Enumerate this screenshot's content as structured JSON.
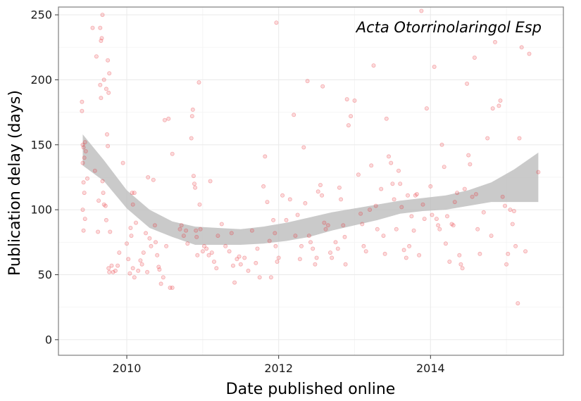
{
  "chart_data": {
    "type": "scatter",
    "title": "",
    "annotation": "Acta Otorrinolaringol Esp",
    "xlabel": "Date published online",
    "ylabel": "Publication delay (days)",
    "xlim": [
      2009.1,
      2015.75
    ],
    "ylim": [
      -12,
      256
    ],
    "x_ticks": [
      2010,
      2012,
      2014
    ],
    "x_tick_labels": [
      "2010",
      "2012",
      "2014"
    ],
    "y_ticks": [
      0,
      50,
      100,
      150,
      200,
      250
    ],
    "y_tick_labels": [
      "0",
      "50",
      "100",
      "150",
      "200",
      "250"
    ],
    "grid": true,
    "point_color": "#e8323a",
    "band_color": "#bdbdbd",
    "points": [
      [
        2009.41,
        183
      ],
      [
        2009.41,
        176
      ],
      [
        2009.42,
        150
      ],
      [
        2009.43,
        148
      ],
      [
        2009.44,
        140
      ],
      [
        2009.42,
        136
      ],
      [
        2009.45,
        152
      ],
      [
        2009.46,
        145
      ],
      [
        2009.43,
        121
      ],
      [
        2009.44,
        113
      ],
      [
        2009.42,
        100
      ],
      [
        2009.45,
        93
      ],
      [
        2009.43,
        84
      ],
      [
        2009.48,
        124
      ],
      [
        2009.55,
        240
      ],
      [
        2009.58,
        130
      ],
      [
        2009.6,
        218
      ],
      [
        2009.62,
        83
      ],
      [
        2009.63,
        107
      ],
      [
        2009.65,
        240
      ],
      [
        2009.66,
        230
      ],
      [
        2009.67,
        232
      ],
      [
        2009.65,
        196
      ],
      [
        2009.66,
        186
      ],
      [
        2009.68,
        122
      ],
      [
        2009.69,
        113
      ],
      [
        2009.7,
        104
      ],
      [
        2009.68,
        250
      ],
      [
        2009.7,
        200
      ],
      [
        2009.72,
        103
      ],
      [
        2009.73,
        193
      ],
      [
        2009.74,
        158
      ],
      [
        2009.75,
        149
      ],
      [
        2009.73,
        92
      ],
      [
        2009.76,
        55
      ],
      [
        2009.77,
        52
      ],
      [
        2009.78,
        83
      ],
      [
        2009.75,
        215
      ],
      [
        2009.76,
        190
      ],
      [
        2009.77,
        205
      ],
      [
        2009.8,
        57
      ],
      [
        2009.82,
        52
      ],
      [
        2009.85,
        53
      ],
      [
        2009.88,
        57
      ],
      [
        2009.9,
        67
      ],
      [
        2009.95,
        136
      ],
      [
        2010.0,
        74
      ],
      [
        2010.02,
        62
      ],
      [
        2010.04,
        51
      ],
      [
        2010.06,
        80
      ],
      [
        2010.07,
        113
      ],
      [
        2010.08,
        104
      ],
      [
        2010.1,
        113
      ],
      [
        2010.12,
        90
      ],
      [
        2010.05,
        86
      ],
      [
        2010.08,
        55
      ],
      [
        2010.1,
        48
      ],
      [
        2010.15,
        53
      ],
      [
        2010.18,
        61
      ],
      [
        2010.2,
        58
      ],
      [
        2010.22,
        67
      ],
      [
        2010.25,
        82
      ],
      [
        2010.27,
        52
      ],
      [
        2010.28,
        125
      ],
      [
        2010.3,
        78
      ],
      [
        2010.32,
        72
      ],
      [
        2010.35,
        123
      ],
      [
        2010.37,
        88
      ],
      [
        2010.38,
        75
      ],
      [
        2010.4,
        65
      ],
      [
        2010.42,
        56
      ],
      [
        2010.43,
        54
      ],
      [
        2010.45,
        43
      ],
      [
        2010.48,
        48
      ],
      [
        2010.5,
        169
      ],
      [
        2010.52,
        72
      ],
      [
        2010.55,
        170
      ],
      [
        2010.57,
        40
      ],
      [
        2010.6,
        40
      ],
      [
        2010.6,
        143
      ],
      [
        2010.7,
        85
      ],
      [
        2010.72,
        88
      ],
      [
        2010.75,
        80
      ],
      [
        2010.78,
        84
      ],
      [
        2010.8,
        74
      ],
      [
        2010.85,
        155
      ],
      [
        2010.86,
        172
      ],
      [
        2010.87,
        177
      ],
      [
        2010.88,
        126
      ],
      [
        2010.89,
        120
      ],
      [
        2010.9,
        117
      ],
      [
        2010.91,
        84
      ],
      [
        2010.92,
        79
      ],
      [
        2010.93,
        65
      ],
      [
        2010.95,
        198
      ],
      [
        2010.96,
        104
      ],
      [
        2010.97,
        85
      ],
      [
        2011.0,
        68
      ],
      [
        2011.02,
        72
      ],
      [
        2011.05,
        70
      ],
      [
        2011.08,
        65
      ],
      [
        2011.1,
        122
      ],
      [
        2011.12,
        67
      ],
      [
        2011.15,
        60
      ],
      [
        2011.18,
        55
      ],
      [
        2011.2,
        80
      ],
      [
        2011.25,
        89
      ],
      [
        2011.3,
        72
      ],
      [
        2011.35,
        68
      ],
      [
        2011.38,
        82
      ],
      [
        2011.4,
        57
      ],
      [
        2011.42,
        44
      ],
      [
        2011.45,
        62
      ],
      [
        2011.48,
        64
      ],
      [
        2011.5,
        58
      ],
      [
        2011.55,
        63
      ],
      [
        2011.6,
        53
      ],
      [
        2011.65,
        84
      ],
      [
        2011.7,
        59
      ],
      [
        2011.72,
        70
      ],
      [
        2011.75,
        48
      ],
      [
        2011.8,
        118
      ],
      [
        2011.82,
        141
      ],
      [
        2011.85,
        106
      ],
      [
        2011.88,
        76
      ],
      [
        2011.9,
        48
      ],
      [
        2011.93,
        92
      ],
      [
        2011.95,
        82
      ],
      [
        2011.96,
        72
      ],
      [
        2011.97,
        244
      ],
      [
        2011.98,
        60
      ],
      [
        2012.0,
        63
      ],
      [
        2012.05,
        111
      ],
      [
        2012.1,
        92
      ],
      [
        2012.15,
        108
      ],
      [
        2012.2,
        173
      ],
      [
        2012.22,
        80
      ],
      [
        2012.25,
        96
      ],
      [
        2012.28,
        62
      ],
      [
        2012.3,
        72
      ],
      [
        2012.33,
        148
      ],
      [
        2012.35,
        105
      ],
      [
        2012.38,
        199
      ],
      [
        2012.4,
        80
      ],
      [
        2012.42,
        75
      ],
      [
        2012.45,
        70
      ],
      [
        2012.48,
        58
      ],
      [
        2012.5,
        63
      ],
      [
        2012.52,
        114
      ],
      [
        2012.55,
        119
      ],
      [
        2012.57,
        111
      ],
      [
        2012.58,
        195
      ],
      [
        2012.6,
        90
      ],
      [
        2012.62,
        85
      ],
      [
        2012.65,
        88
      ],
      [
        2012.68,
        67
      ],
      [
        2012.7,
        63
      ],
      [
        2012.75,
        75
      ],
      [
        2012.78,
        70
      ],
      [
        2012.8,
        117
      ],
      [
        2012.82,
        108
      ],
      [
        2012.85,
        88
      ],
      [
        2012.87,
        79
      ],
      [
        2012.88,
        58
      ],
      [
        2012.9,
        185
      ],
      [
        2012.92,
        165
      ],
      [
        2012.95,
        172
      ],
      [
        2013.0,
        184
      ],
      [
        2013.05,
        127
      ],
      [
        2013.08,
        97
      ],
      [
        2013.1,
        89
      ],
      [
        2013.12,
        72
      ],
      [
        2013.15,
        68
      ],
      [
        2013.2,
        100
      ],
      [
        2013.22,
        134
      ],
      [
        2013.25,
        211
      ],
      [
        2013.28,
        103
      ],
      [
        2013.3,
        85
      ],
      [
        2013.35,
        116
      ],
      [
        2013.38,
        80
      ],
      [
        2013.4,
        66
      ],
      [
        2013.42,
        170
      ],
      [
        2013.45,
        141
      ],
      [
        2013.48,
        136
      ],
      [
        2013.5,
        120
      ],
      [
        2013.52,
        108
      ],
      [
        2013.55,
        85
      ],
      [
        2013.58,
        130
      ],
      [
        2013.6,
        120
      ],
      [
        2013.62,
        102
      ],
      [
        2013.65,
        69
      ],
      [
        2013.68,
        63
      ],
      [
        2013.7,
        111
      ],
      [
        2013.72,
        72
      ],
      [
        2013.75,
        95
      ],
      [
        2013.78,
        84
      ],
      [
        2013.8,
        111
      ],
      [
        2013.82,
        112
      ],
      [
        2013.85,
        65
      ],
      [
        2013.88,
        253
      ],
      [
        2013.9,
        104
      ],
      [
        2013.92,
        93
      ],
      [
        2013.95,
        178
      ],
      [
        2014.0,
        118
      ],
      [
        2014.02,
        96
      ],
      [
        2014.05,
        210
      ],
      [
        2014.08,
        93
      ],
      [
        2014.1,
        88
      ],
      [
        2014.12,
        85
      ],
      [
        2014.15,
        150
      ],
      [
        2014.18,
        133
      ],
      [
        2014.2,
        74
      ],
      [
        2014.22,
        95
      ],
      [
        2014.25,
        60
      ],
      [
        2014.28,
        89
      ],
      [
        2014.3,
        88
      ],
      [
        2014.32,
        106
      ],
      [
        2014.35,
        113
      ],
      [
        2014.38,
        65
      ],
      [
        2014.4,
        58
      ],
      [
        2014.42,
        55
      ],
      [
        2014.45,
        116
      ],
      [
        2014.48,
        197
      ],
      [
        2014.5,
        142
      ],
      [
        2014.52,
        135
      ],
      [
        2014.55,
        110
      ],
      [
        2014.58,
        217
      ],
      [
        2014.6,
        112
      ],
      [
        2014.62,
        85
      ],
      [
        2014.65,
        66
      ],
      [
        2014.7,
        98
      ],
      [
        2014.75,
        155
      ],
      [
        2014.8,
        80
      ],
      [
        2014.82,
        178
      ],
      [
        2014.85,
        229
      ],
      [
        2014.9,
        180
      ],
      [
        2014.92,
        184
      ],
      [
        2014.95,
        110
      ],
      [
        2014.98,
        103
      ],
      [
        2015.0,
        58
      ],
      [
        2015.02,
        66
      ],
      [
        2015.05,
        100
      ],
      [
        2015.08,
        89
      ],
      [
        2015.1,
        99
      ],
      [
        2015.12,
        72
      ],
      [
        2015.15,
        28
      ],
      [
        2015.17,
        155
      ],
      [
        2015.2,
        225
      ],
      [
        2015.25,
        68
      ],
      [
        2015.3,
        220
      ],
      [
        2015.42,
        129
      ]
    ],
    "fit": {
      "x": [
        2009.42,
        2009.7,
        2010.0,
        2010.3,
        2010.6,
        2010.9,
        2011.2,
        2011.5,
        2011.8,
        2012.1,
        2012.4,
        2012.7,
        2013.0,
        2013.3,
        2013.6,
        2013.9,
        2014.2,
        2014.5,
        2014.8,
        2015.1,
        2015.42
      ],
      "upper": [
        158,
        138,
        115,
        100,
        91,
        87,
        86,
        85,
        87,
        90,
        94,
        98,
        101,
        104,
        107,
        109,
        111,
        115,
        121,
        131,
        144
      ],
      "lower": [
        134,
        122,
        101,
        86,
        79,
        73,
        73,
        73,
        74,
        76,
        79,
        84,
        88,
        92,
        97,
        99,
        100,
        103,
        106,
        106,
        106
      ]
    }
  }
}
